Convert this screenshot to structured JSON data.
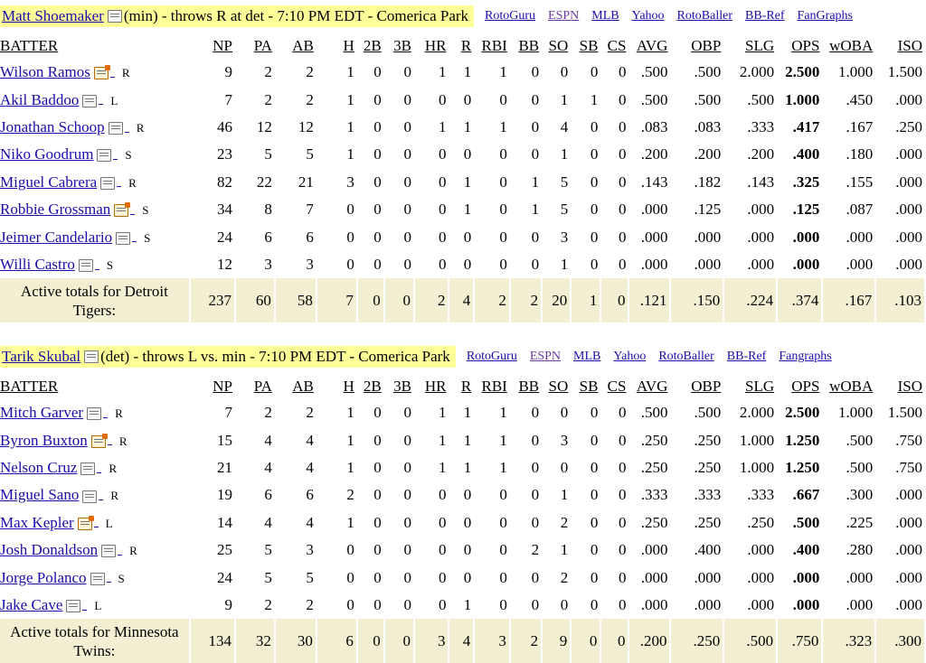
{
  "columns": [
    "BATTER",
    "NP",
    "PA",
    "AB",
    "H",
    "2B",
    "3B",
    "HR",
    "R",
    "RBI",
    "BB",
    "SO",
    "SB",
    "CS",
    "AVG",
    "OBP",
    "SLG",
    "OPS",
    "wOBA",
    "ISO"
  ],
  "external_links": [
    {
      "label": "RotoGuru"
    },
    {
      "label": "ESPN"
    },
    {
      "label": "MLB"
    },
    {
      "label": "Yahoo"
    },
    {
      "label": "RotoBaller"
    },
    {
      "label": "BB-Ref"
    }
  ],
  "games": [
    {
      "pitcher": "Matt Shoemaker",
      "matchup": "(min) - throws R at det - 7:10 PM EDT - Comerica Park",
      "link_labels": [
        "RotoGuru",
        "ESPN",
        "MLB",
        "Yahoo",
        "RotoBaller",
        "BB-Ref",
        "FanGraphs"
      ],
      "batters": [
        {
          "name": "Wilson Ramos",
          "hand": "R",
          "hot": true,
          "stats": [
            "9",
            "2",
            "2",
            "1",
            "0",
            "0",
            "1",
            "1",
            "1",
            "0",
            "0",
            "0",
            "0",
            ".500",
            ".500",
            "2.000",
            "2.500",
            "1.000",
            "1.500"
          ]
        },
        {
          "name": "Akil Baddoo",
          "hand": "L",
          "hot": false,
          "stats": [
            "7",
            "2",
            "2",
            "1",
            "0",
            "0",
            "0",
            "0",
            "0",
            "0",
            "1",
            "1",
            "0",
            ".500",
            ".500",
            ".500",
            "1.000",
            ".450",
            ".000"
          ]
        },
        {
          "name": "Jonathan Schoop",
          "hand": "R",
          "hot": false,
          "stats": [
            "46",
            "12",
            "12",
            "1",
            "0",
            "0",
            "1",
            "1",
            "1",
            "0",
            "4",
            "0",
            "0",
            ".083",
            ".083",
            ".333",
            ".417",
            ".167",
            ".250"
          ]
        },
        {
          "name": "Niko Goodrum",
          "hand": "S",
          "hot": false,
          "stats": [
            "23",
            "5",
            "5",
            "1",
            "0",
            "0",
            "0",
            "0",
            "0",
            "0",
            "1",
            "0",
            "0",
            ".200",
            ".200",
            ".200",
            ".400",
            ".180",
            ".000"
          ]
        },
        {
          "name": "Miguel Cabrera",
          "hand": "R",
          "hot": false,
          "stats": [
            "82",
            "22",
            "21",
            "3",
            "0",
            "0",
            "0",
            "1",
            "0",
            "1",
            "5",
            "0",
            "0",
            ".143",
            ".182",
            ".143",
            ".325",
            ".155",
            ".000"
          ]
        },
        {
          "name": "Robbie Grossman",
          "hand": "S",
          "hot": true,
          "stats": [
            "34",
            "8",
            "7",
            "0",
            "0",
            "0",
            "0",
            "1",
            "0",
            "1",
            "5",
            "0",
            "0",
            ".000",
            ".125",
            ".000",
            ".125",
            ".087",
            ".000"
          ]
        },
        {
          "name": "Jeimer Candelario",
          "hand": "S",
          "hot": false,
          "stats": [
            "24",
            "6",
            "6",
            "0",
            "0",
            "0",
            "0",
            "0",
            "0",
            "0",
            "3",
            "0",
            "0",
            ".000",
            ".000",
            ".000",
            ".000",
            ".000",
            ".000"
          ]
        },
        {
          "name": "Willi Castro",
          "hand": "S",
          "hot": false,
          "stats": [
            "12",
            "3",
            "3",
            "0",
            "0",
            "0",
            "0",
            "0",
            "0",
            "0",
            "1",
            "0",
            "0",
            ".000",
            ".000",
            ".000",
            ".000",
            ".000",
            ".000"
          ]
        }
      ],
      "totals": {
        "label": "Active totals for Detroit Tigers:",
        "stats": [
          "237",
          "60",
          "58",
          "7",
          "0",
          "0",
          "2",
          "4",
          "2",
          "2",
          "20",
          "1",
          "0",
          ".121",
          ".150",
          ".224",
          ".374",
          ".167",
          ".103"
        ]
      }
    },
    {
      "pitcher": "Tarik Skubal",
      "matchup": "(det) - throws L vs. min - 7:10 PM EDT - Comerica Park",
      "link_labels": [
        "RotoGuru",
        "ESPN",
        "MLB",
        "Yahoo",
        "RotoBaller",
        "BB-Ref",
        "Fangraphs"
      ],
      "batters": [
        {
          "name": "Mitch Garver",
          "hand": "R",
          "hot": false,
          "stats": [
            "7",
            "2",
            "2",
            "1",
            "0",
            "0",
            "1",
            "1",
            "1",
            "0",
            "0",
            "0",
            "0",
            ".500",
            ".500",
            "2.000",
            "2.500",
            "1.000",
            "1.500"
          ]
        },
        {
          "name": "Byron Buxton",
          "hand": "R",
          "hot": true,
          "stats": [
            "15",
            "4",
            "4",
            "1",
            "0",
            "0",
            "1",
            "1",
            "1",
            "0",
            "3",
            "0",
            "0",
            ".250",
            ".250",
            "1.000",
            "1.250",
            ".500",
            ".750"
          ]
        },
        {
          "name": "Nelson Cruz",
          "hand": "R",
          "hot": false,
          "stats": [
            "21",
            "4",
            "4",
            "1",
            "0",
            "0",
            "1",
            "1",
            "1",
            "0",
            "0",
            "0",
            "0",
            ".250",
            ".250",
            "1.000",
            "1.250",
            ".500",
            ".750"
          ]
        },
        {
          "name": "Miguel Sano",
          "hand": "R",
          "hot": false,
          "stats": [
            "19",
            "6",
            "6",
            "2",
            "0",
            "0",
            "0",
            "0",
            "0",
            "0",
            "1",
            "0",
            "0",
            ".333",
            ".333",
            ".333",
            ".667",
            ".300",
            ".000"
          ]
        },
        {
          "name": "Max Kepler",
          "hand": "L",
          "hot": true,
          "stats": [
            "14",
            "4",
            "4",
            "1",
            "0",
            "0",
            "0",
            "0",
            "0",
            "0",
            "2",
            "0",
            "0",
            ".250",
            ".250",
            ".250",
            ".500",
            ".225",
            ".000"
          ]
        },
        {
          "name": "Josh Donaldson",
          "hand": "R",
          "hot": false,
          "stats": [
            "25",
            "5",
            "3",
            "0",
            "0",
            "0",
            "0",
            "0",
            "0",
            "2",
            "1",
            "0",
            "0",
            ".000",
            ".400",
            ".000",
            ".400",
            ".280",
            ".000"
          ]
        },
        {
          "name": "Jorge Polanco",
          "hand": "S",
          "hot": false,
          "stats": [
            "24",
            "5",
            "5",
            "0",
            "0",
            "0",
            "0",
            "0",
            "0",
            "0",
            "2",
            "0",
            "0",
            ".000",
            ".000",
            ".000",
            ".000",
            ".000",
            ".000"
          ]
        },
        {
          "name": "Jake Cave",
          "hand": "L",
          "hot": false,
          "stats": [
            "9",
            "2",
            "2",
            "0",
            "0",
            "0",
            "0",
            "1",
            "0",
            "0",
            "0",
            "0",
            "0",
            ".000",
            ".000",
            ".000",
            ".000",
            ".000",
            ".000"
          ]
        }
      ],
      "totals": {
        "label": "Active totals for Minnesota Twins:",
        "stats": [
          "134",
          "32",
          "30",
          "6",
          "0",
          "0",
          "3",
          "4",
          "3",
          "2",
          "9",
          "0",
          "0",
          ".200",
          ".250",
          ".500",
          ".750",
          ".323",
          ".300"
        ]
      }
    }
  ]
}
